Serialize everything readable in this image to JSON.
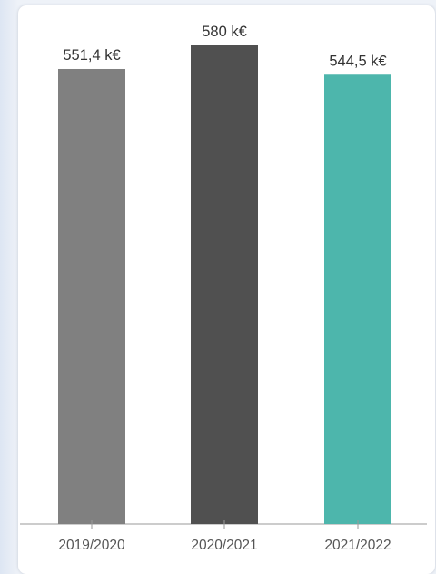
{
  "chart_data": {
    "type": "bar",
    "categories": [
      "2019/2020",
      "2020/2021",
      "2021/2022"
    ],
    "values": [
      551.4,
      580,
      544.5
    ],
    "value_labels": [
      "551,4 k€",
      "580 k€",
      "544,5 k€"
    ],
    "colors": [
      "#808080",
      "#505050",
      "#4db6ac"
    ],
    "ylim": [
      0,
      580
    ],
    "title": "",
    "xlabel": "",
    "ylabel": "",
    "grid": false
  }
}
